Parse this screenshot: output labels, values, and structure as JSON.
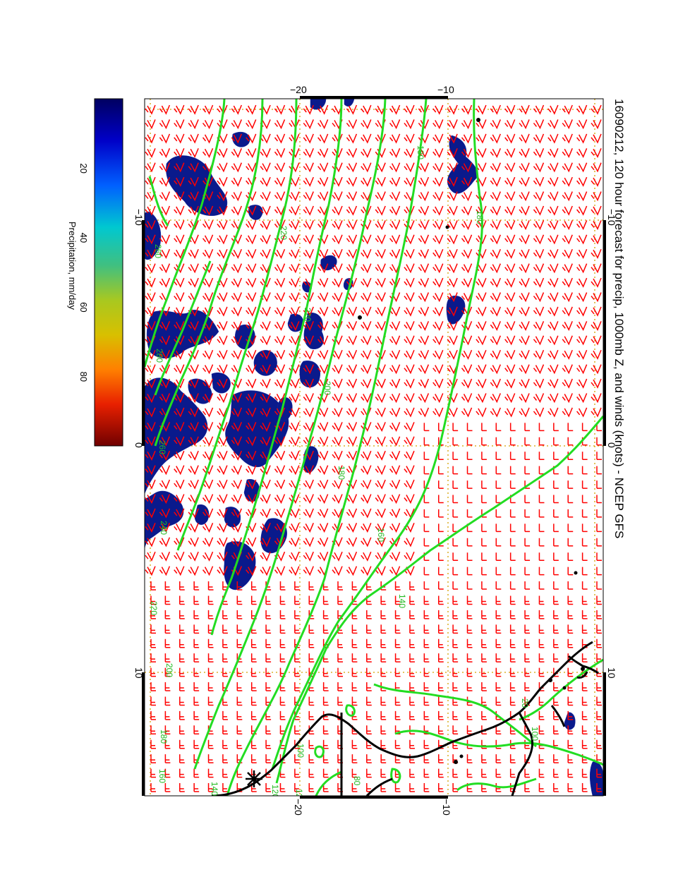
{
  "title": "16090212, 120 hour forecast for precip, 1000mb Z, and winds (knots) - NCEP GFS",
  "colorbar": {
    "label": "Precipitation, mm/day",
    "ticks": [
      "20",
      "40",
      "60",
      "80"
    ],
    "tick_values": [
      20,
      40,
      60,
      80
    ],
    "range": [
      0,
      100
    ],
    "colors": [
      "#000080",
      "#0000ff",
      "#0080ff",
      "#00c8c8",
      "#40c080",
      "#c8c800",
      "#ff8000",
      "#ff0000",
      "#800000"
    ]
  },
  "map": {
    "top_axis_labels": [
      "−20",
      "−10"
    ],
    "bottom_axis_labels": [
      "−20",
      "−10"
    ],
    "left_axis_labels": [
      "−10",
      "0",
      "10"
    ],
    "right_axis_labels": [
      "−10",
      "0",
      "10"
    ],
    "contour_color": "#22dd22",
    "wind_barb_color": "#ff0000",
    "precip_color": "#0a1a8c",
    "coastline_color": "#000000",
    "gridline_color": "#d4a000",
    "contour_labels": [
      "180",
      "180",
      "220",
      "220",
      "200",
      "180",
      "160",
      "140",
      "260",
      "280",
      "260",
      "240",
      "220",
      "200",
      "180",
      "160",
      "140",
      "120",
      "100",
      "80",
      "120",
      "20",
      "100"
    ]
  }
}
